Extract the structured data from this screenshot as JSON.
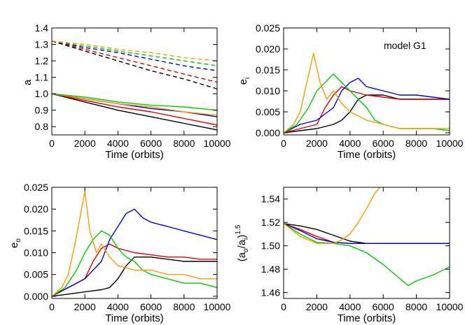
{
  "chart_data": [
    {
      "type": "line",
      "ylabel": "a",
      "xlabel": "Time (orbits)",
      "xlim": [
        0,
        10000
      ],
      "ylim": [
        0.75,
        1.4
      ],
      "xticks": [
        0,
        2000,
        4000,
        6000,
        8000,
        10000
      ],
      "yticks": [
        0.8,
        0.9,
        1.0,
        1.1,
        1.2,
        1.3,
        1.4
      ],
      "ytick_labels": [
        "0.8",
        "0.9",
        "1.0",
        "1.1",
        "1.2",
        "1.3",
        "1.4"
      ],
      "series": [
        {
          "color": "#000000",
          "style": "dashed",
          "x": [
            0,
            2000,
            4000,
            6000,
            8000,
            10000
          ],
          "y": [
            1.32,
            1.26,
            1.2,
            1.14,
            1.09,
            1.03
          ]
        },
        {
          "color": "#dd0000",
          "style": "dashed",
          "x": [
            0,
            2000,
            4000,
            6000,
            8000,
            10000
          ],
          "y": [
            1.32,
            1.27,
            1.22,
            1.17,
            1.12,
            1.07
          ]
        },
        {
          "color": "#0000dd",
          "style": "dashed",
          "x": [
            0,
            2000,
            4000,
            6000,
            8000,
            10000
          ],
          "y": [
            1.32,
            1.28,
            1.25,
            1.21,
            1.17,
            1.14
          ]
        },
        {
          "color": "#00cc00",
          "style": "dashed",
          "x": [
            0,
            2000,
            4000,
            6000,
            8000,
            10000
          ],
          "y": [
            1.32,
            1.29,
            1.26,
            1.23,
            1.2,
            1.17
          ]
        },
        {
          "color": "#ff9900",
          "style": "dashed",
          "x": [
            0,
            2000,
            4000,
            6000,
            8000,
            10000
          ],
          "y": [
            1.32,
            1.3,
            1.27,
            1.25,
            1.22,
            1.2
          ]
        },
        {
          "color": "#000000",
          "style": "solid",
          "x": [
            0,
            2000,
            4000,
            6000,
            8000,
            10000
          ],
          "y": [
            1.0,
            0.95,
            0.9,
            0.86,
            0.82,
            0.78
          ]
        },
        {
          "color": "#dd0000",
          "style": "solid",
          "x": [
            0,
            2000,
            4000,
            6000,
            8000,
            10000
          ],
          "y": [
            1.0,
            0.96,
            0.92,
            0.89,
            0.85,
            0.81
          ]
        },
        {
          "color": "#0000dd",
          "style": "solid",
          "x": [
            0,
            2000,
            4000,
            6000,
            8000,
            10000
          ],
          "y": [
            1.0,
            0.97,
            0.94,
            0.91,
            0.89,
            0.86
          ]
        },
        {
          "color": "#ff9900",
          "style": "solid",
          "x": [
            0,
            2000,
            4000,
            6000,
            8000,
            10000
          ],
          "y": [
            1.0,
            0.97,
            0.94,
            0.92,
            0.89,
            0.87
          ]
        },
        {
          "color": "#00cc00",
          "style": "solid",
          "x": [
            0,
            2000,
            4000,
            6000,
            8000,
            10000
          ],
          "y": [
            1.0,
            0.98,
            0.95,
            0.93,
            0.92,
            0.9
          ]
        }
      ]
    },
    {
      "type": "line",
      "ylabel": "e",
      "ylabel_sub": "i",
      "xlabel": "Time (orbits)",
      "annotation": "model G1",
      "xlim": [
        0,
        10000
      ],
      "ylim": [
        -0.0005,
        0.025
      ],
      "xticks": [
        0,
        2000,
        4000,
        6000,
        8000,
        10000
      ],
      "yticks": [
        0,
        0.005,
        0.01,
        0.015,
        0.02,
        0.025
      ],
      "ytick_labels": [
        "0.000",
        "0.005",
        "0.010",
        "0.015",
        "0.020",
        "0.025"
      ],
      "series": [
        {
          "color": "#000000",
          "x": [
            0,
            1000,
            2000,
            2500,
            3000,
            3500,
            4000,
            4500,
            5000,
            6000,
            7000,
            8000,
            9000,
            10000
          ],
          "y": [
            0,
            0.0005,
            0.001,
            0.0015,
            0.002,
            0.003,
            0.005,
            0.008,
            0.009,
            0.009,
            0.008,
            0.008,
            0.008,
            0.008
          ]
        },
        {
          "color": "#dd0000",
          "x": [
            0,
            1000,
            2000,
            2500,
            3000,
            3500,
            4000,
            5000,
            6000,
            7000,
            8000,
            9000,
            10000
          ],
          "y": [
            0,
            0.001,
            0.002,
            0.006,
            0.009,
            0.011,
            0.01,
            0.009,
            0.0085,
            0.008,
            0.008,
            0.008,
            0.008
          ]
        },
        {
          "color": "#0000dd",
          "x": [
            0,
            1000,
            2000,
            3000,
            3500,
            4000,
            4500,
            5000,
            6000,
            7000,
            8000,
            9000,
            10000
          ],
          "y": [
            0,
            0.002,
            0.003,
            0.006,
            0.01,
            0.012,
            0.013,
            0.011,
            0.01,
            0.009,
            0.009,
            0.0085,
            0.008
          ]
        },
        {
          "color": "#00cc00",
          "x": [
            0,
            800,
            1500,
            2000,
            2500,
            3000,
            3500,
            4000,
            4500,
            5000,
            5500,
            6000,
            7000,
            8000,
            9000,
            10000
          ],
          "y": [
            0,
            0.002,
            0.006,
            0.01,
            0.012,
            0.014,
            0.012,
            0.01,
            0.008,
            0.006,
            0.003,
            0.002,
            0.001,
            0.001,
            0.001,
            0.0005
          ]
        },
        {
          "color": "#ff9900",
          "x": [
            0,
            600,
            1000,
            1400,
            1800,
            2200,
            2600,
            3000,
            3500,
            4000,
            4500,
            5000,
            6000,
            7000,
            8000,
            9000,
            10000
          ],
          "y": [
            0,
            0.002,
            0.005,
            0.012,
            0.019,
            0.012,
            0.008,
            0.01,
            0.007,
            0.005,
            0.004,
            0.003,
            0.002,
            0.001,
            0.001,
            0.001,
            0.001
          ]
        }
      ]
    },
    {
      "type": "line",
      "ylabel": "e",
      "ylabel_sub": "o",
      "xlabel": "Time (orbits)",
      "xlim": [
        0,
        10000
      ],
      "ylim": [
        -0.0005,
        0.025
      ],
      "xticks": [
        0,
        2000,
        4000,
        6000,
        8000,
        10000
      ],
      "yticks": [
        0,
        0.005,
        0.01,
        0.015,
        0.02,
        0.025
      ],
      "ytick_labels": [
        "0.000",
        "0.005",
        "0.010",
        "0.015",
        "0.020",
        "0.025"
      ],
      "series": [
        {
          "color": "#000000",
          "x": [
            0,
            1000,
            2000,
            3000,
            3500,
            4000,
            4500,
            5000,
            6000,
            7000,
            8000,
            9000,
            10000
          ],
          "y": [
            0,
            0.0005,
            0.001,
            0.0015,
            0.002,
            0.004,
            0.007,
            0.009,
            0.009,
            0.0085,
            0.008,
            0.008,
            0.008
          ]
        },
        {
          "color": "#dd0000",
          "x": [
            0,
            1000,
            2000,
            2500,
            3000,
            3500,
            4000,
            5000,
            6000,
            7000,
            8000,
            9000,
            10000
          ],
          "y": [
            0,
            0.002,
            0.004,
            0.008,
            0.011,
            0.012,
            0.011,
            0.01,
            0.0095,
            0.009,
            0.009,
            0.0085,
            0.0085
          ]
        },
        {
          "color": "#0000dd",
          "x": [
            0,
            1000,
            2000,
            3000,
            3500,
            4000,
            4500,
            5000,
            5500,
            6000,
            7000,
            8000,
            9000,
            10000
          ],
          "y": [
            0,
            0.002,
            0.004,
            0.008,
            0.013,
            0.016,
            0.019,
            0.02,
            0.018,
            0.017,
            0.016,
            0.015,
            0.014,
            0.013
          ]
        },
        {
          "color": "#00cc00",
          "x": [
            0,
            800,
            1500,
            2000,
            2500,
            3000,
            3500,
            4000,
            4500,
            5000,
            5500,
            6000,
            7000,
            8000,
            9000,
            10000
          ],
          "y": [
            0,
            0.002,
            0.006,
            0.01,
            0.013,
            0.015,
            0.014,
            0.011,
            0.009,
            0.008,
            0.006,
            0.005,
            0.004,
            0.003,
            0.003,
            0.002
          ]
        },
        {
          "color": "#ff9900",
          "x": [
            0,
            600,
            1000,
            1400,
            1800,
            2000,
            2300,
            2700,
            3000,
            3500,
            4000,
            5000,
            6000,
            7000,
            8000,
            9000,
            10000
          ],
          "y": [
            0,
            0.002,
            0.005,
            0.012,
            0.02,
            0.024,
            0.015,
            0.01,
            0.012,
            0.009,
            0.007,
            0.006,
            0.006,
            0.005,
            0.005,
            0.004,
            0.004
          ]
        }
      ]
    },
    {
      "type": "line",
      "ylabel": "(a",
      "ylabel_sub1": "o",
      "ylabel_mid": "/a",
      "ylabel_sub2": "i",
      "ylabel_end": ")",
      "ylabel_sup": "1.5",
      "xlabel": "Time (orbits)",
      "xlim": [
        0,
        10000
      ],
      "ylim": [
        1.455,
        1.55
      ],
      "xticks": [
        0,
        2000,
        4000,
        6000,
        8000,
        10000
      ],
      "yticks": [
        1.46,
        1.48,
        1.5,
        1.52,
        1.54
      ],
      "ytick_labels": [
        "1.46",
        "1.48",
        "1.50",
        "1.52",
        "1.54"
      ],
      "series": [
        {
          "color": "#000000",
          "x": [
            0,
            1000,
            2000,
            3000,
            4000,
            5000,
            6000,
            7000,
            8000,
            9000,
            10000
          ],
          "y": [
            1.519,
            1.517,
            1.514,
            1.509,
            1.504,
            1.502,
            1.502,
            1.502,
            1.502,
            1.502,
            1.502
          ]
        },
        {
          "color": "#dd0000",
          "x": [
            0,
            1000,
            2000,
            3000,
            4000,
            5000,
            6000,
            7000,
            8000,
            9000,
            10000
          ],
          "y": [
            1.519,
            1.514,
            1.508,
            1.503,
            1.502,
            1.502,
            1.502,
            1.502,
            1.502,
            1.502,
            1.502
          ]
        },
        {
          "color": "#0000dd",
          "x": [
            0,
            1000,
            2000,
            3000,
            4000,
            5000,
            6000,
            7000,
            8000,
            9000,
            10000
          ],
          "y": [
            1.519,
            1.513,
            1.506,
            1.503,
            1.502,
            1.502,
            1.502,
            1.502,
            1.502,
            1.502,
            1.502
          ]
        },
        {
          "color": "#00cc00",
          "x": [
            0,
            1000,
            2000,
            3000,
            4000,
            5000,
            6000,
            7000,
            7500,
            8000,
            9000,
            10000
          ],
          "y": [
            1.519,
            1.51,
            1.503,
            1.502,
            1.5,
            1.494,
            1.484,
            1.472,
            1.466,
            1.47,
            1.475,
            1.482
          ]
        },
        {
          "color": "#ff9900",
          "x": [
            0,
            1000,
            2000,
            3000,
            3500,
            4000,
            4500,
            5000,
            5500,
            5800
          ],
          "y": [
            1.519,
            1.508,
            1.502,
            1.502,
            1.505,
            1.51,
            1.52,
            1.532,
            1.545,
            1.55
          ]
        }
      ]
    }
  ]
}
